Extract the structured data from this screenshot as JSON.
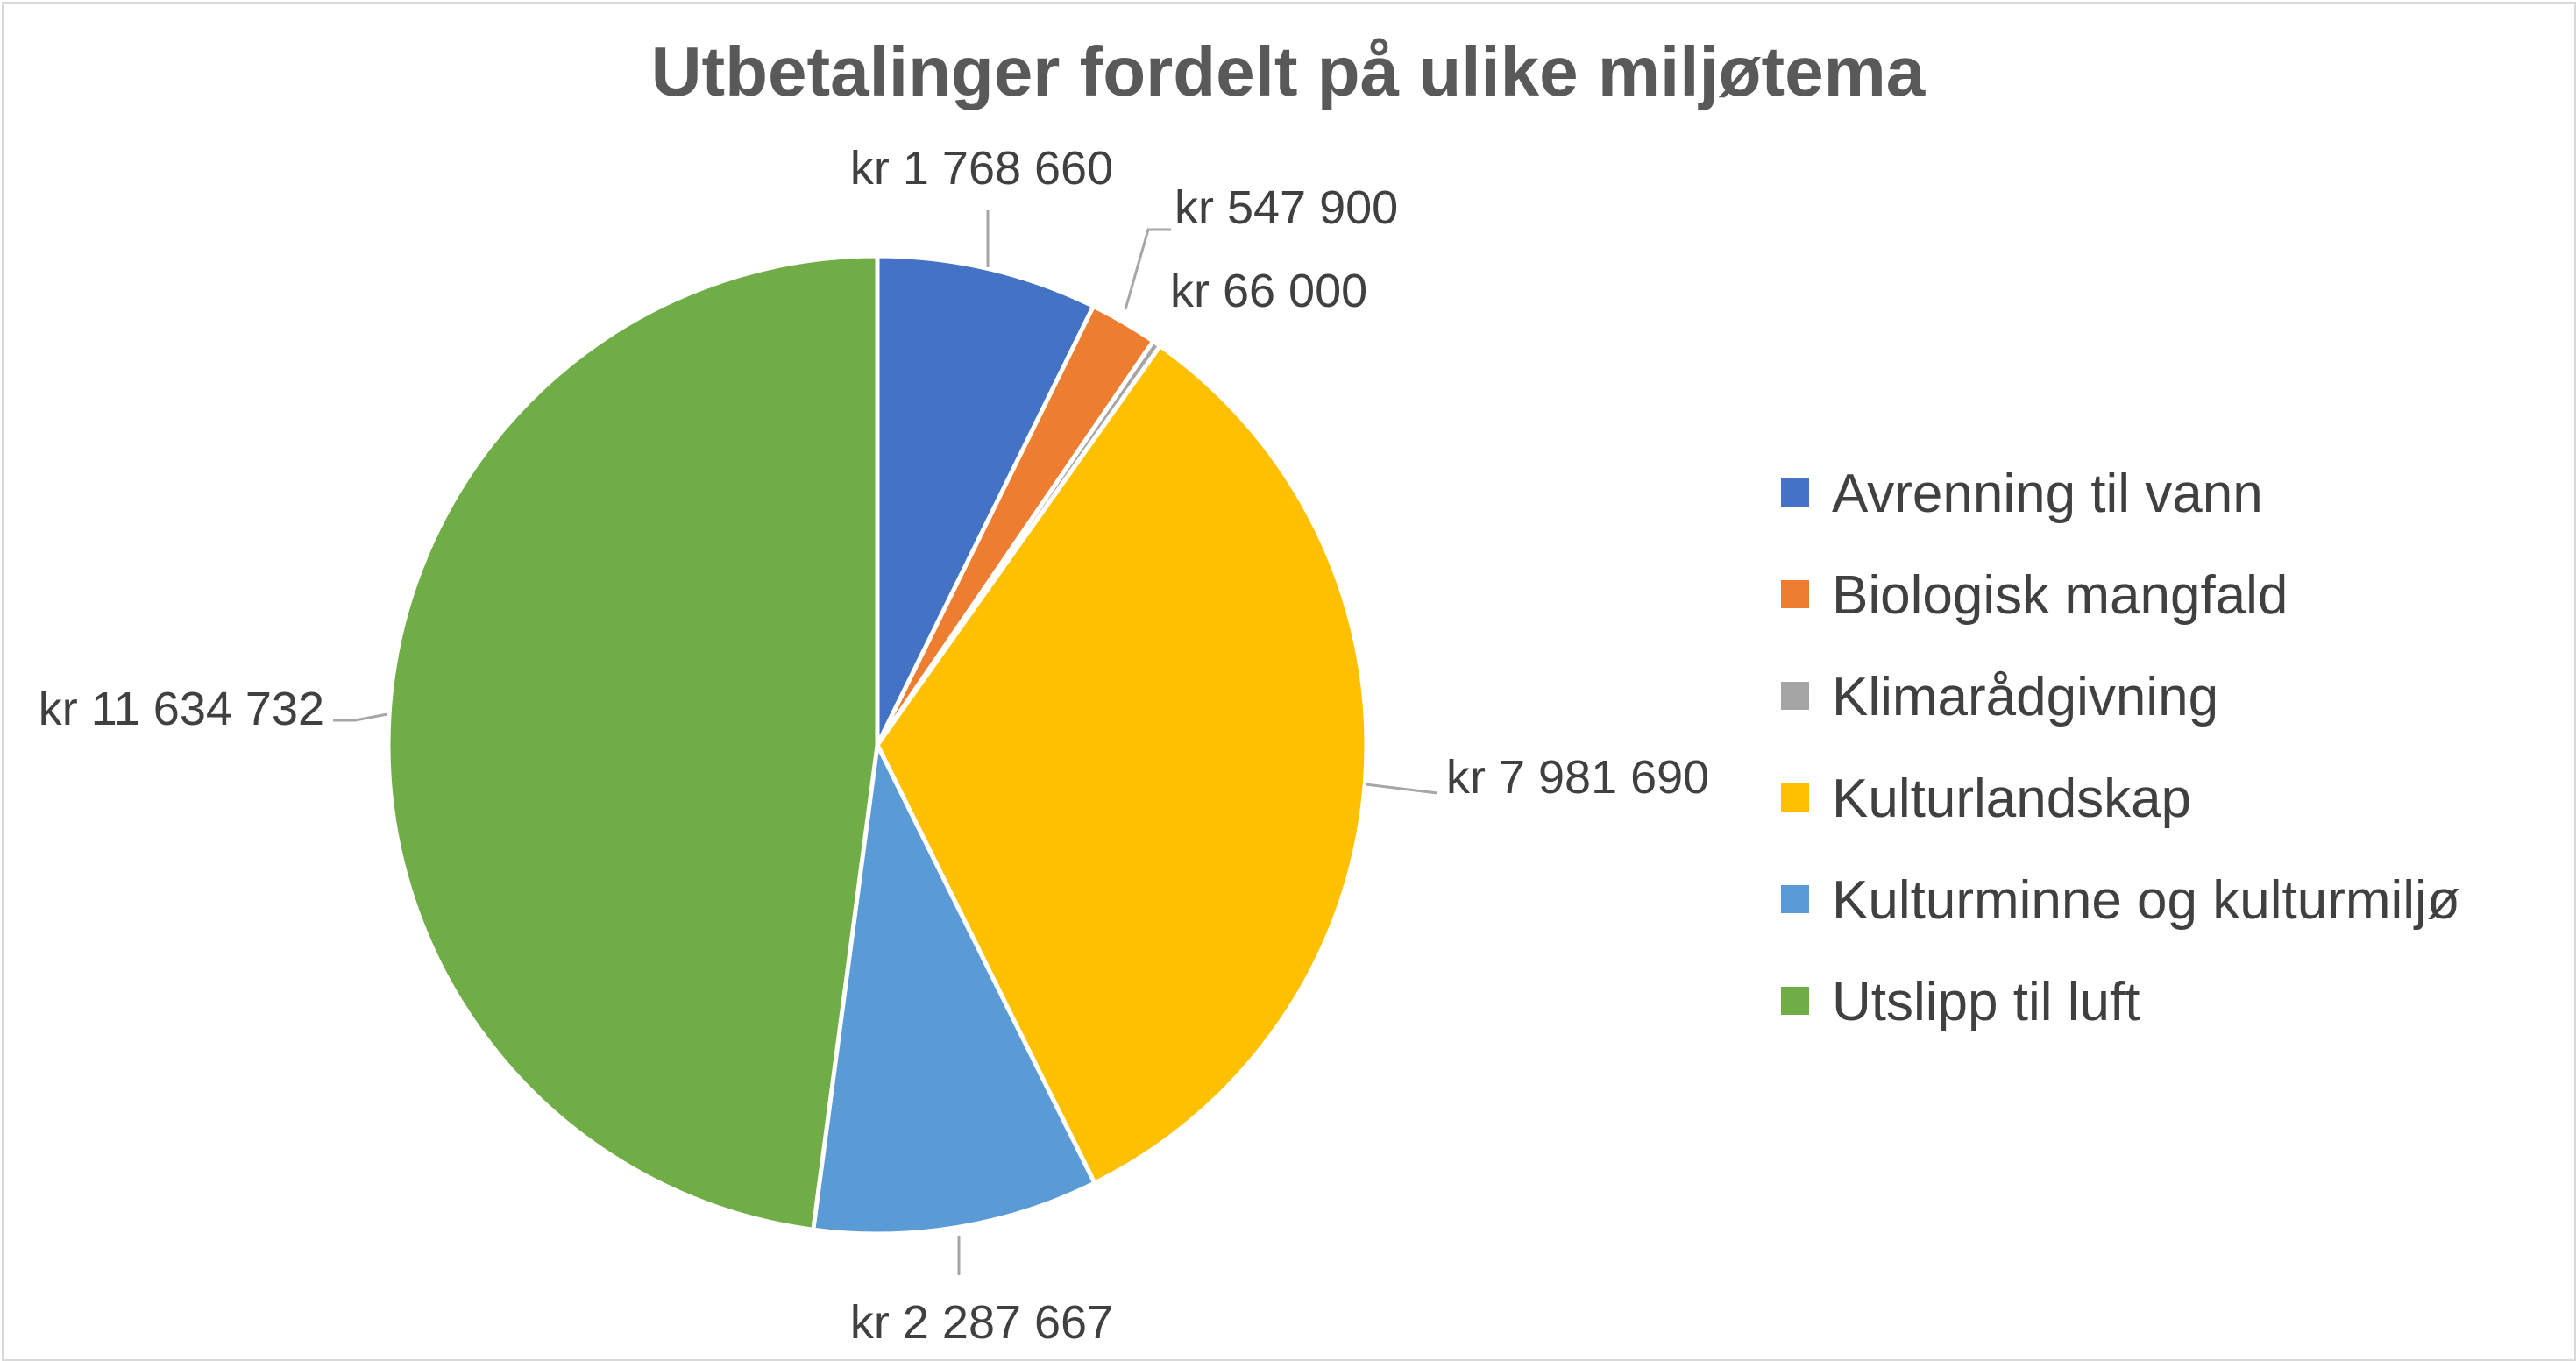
{
  "chart_data": {
    "type": "pie",
    "title": "Utbetalinger fordelt på ulike miljøtema",
    "slices": [
      {
        "name": "Avrenning til vann",
        "value": 1768660,
        "label": "kr 1 768 660",
        "color": "#4472C4"
      },
      {
        "name": "Biologisk mangfald",
        "value": 547900,
        "label": "kr 547 900",
        "color": "#ED7D31"
      },
      {
        "name": "Klimarådgivning",
        "value": 66000,
        "label": "kr 66 000",
        "color": "#A5A5A5"
      },
      {
        "name": "Kulturlandskap",
        "value": 7981690,
        "label": "kr 7 981 690",
        "color": "#FFC000"
      },
      {
        "name": "Kulturminne og kulturmiljø",
        "value": 2287667,
        "label": "kr 2 287 667",
        "color": "#5B9BD5"
      },
      {
        "name": "Utslipp til luft",
        "value": 11634732,
        "label": "kr 11 634 732",
        "color": "#70AD47"
      }
    ],
    "legend_position": "right"
  }
}
